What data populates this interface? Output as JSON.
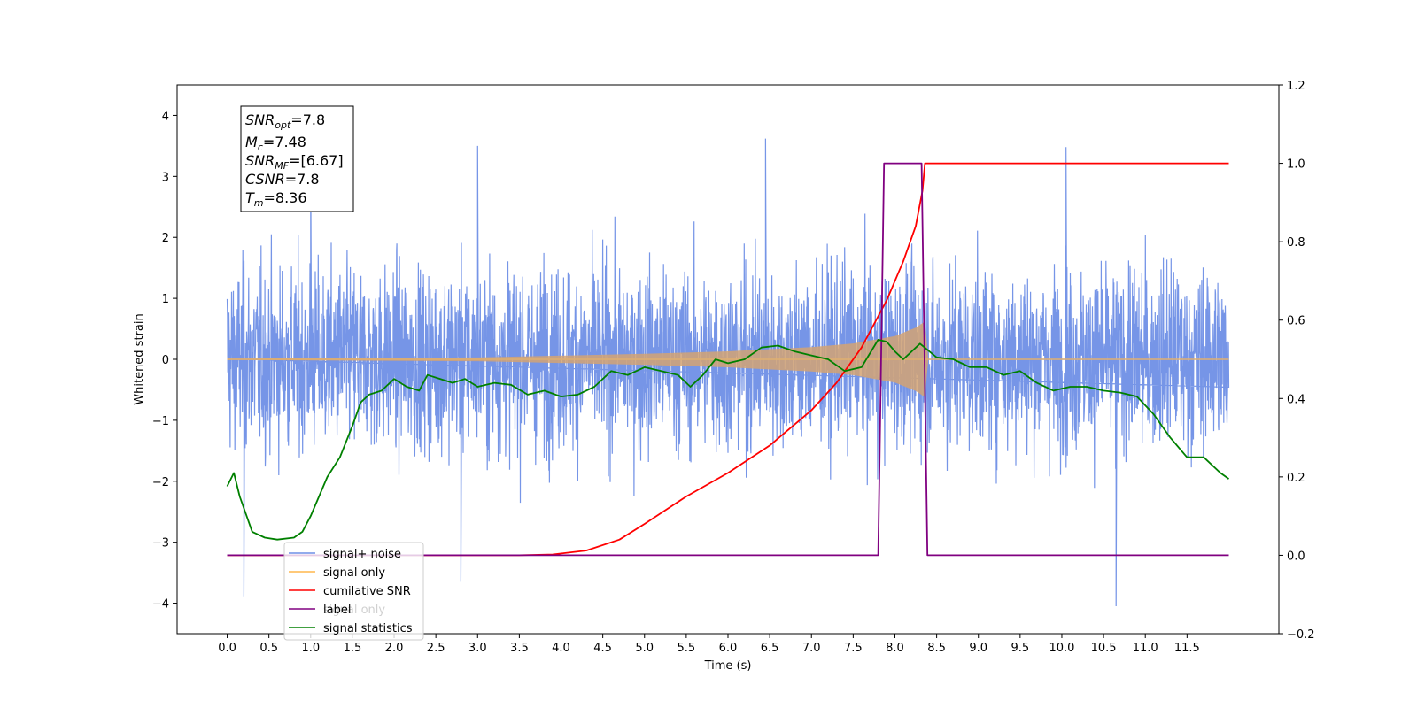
{
  "chart_data": {
    "type": "line",
    "xlabel": "Time (s)",
    "ylabel": "Whitened strain",
    "xlim": [
      -0.6,
      12.6
    ],
    "ylim": [
      -4.5,
      4.5
    ],
    "y2lim": [
      -0.2,
      1.2
    ],
    "x_ticks": [
      "0.0",
      "0.5",
      "1.0",
      "1.5",
      "2.0",
      "2.5",
      "3.0",
      "3.5",
      "4.0",
      "4.5",
      "5.0",
      "5.5",
      "6.0",
      "6.5",
      "7.0",
      "7.5",
      "8.0",
      "8.5",
      "9.0",
      "9.5",
      "10.0",
      "10.5",
      "11.0",
      "11.5"
    ],
    "y_ticks": [
      "4",
      "3",
      "2",
      "1",
      "0",
      "−1",
      "−2",
      "−3",
      "−4"
    ],
    "y2_ticks": [
      "1.2",
      "1.0",
      "0.8",
      "0.6",
      "0.4",
      "0.2",
      "0.0",
      "−0.2"
    ],
    "annotation": {
      "snr_opt": {
        "base": "SNR",
        "sub": "opt",
        "value": "=7.8"
      },
      "mc": {
        "base": "M",
        "sub": "c",
        "value": "=7.48"
      },
      "snr_mf": {
        "base": "SNR",
        "sub": "MF",
        "value": "=[6.67]"
      },
      "csnr": {
        "base": "CSNR",
        "sub": "",
        "value": "=7.8"
      },
      "tm": {
        "base": "T",
        "sub": "m",
        "value": "=8.36"
      }
    },
    "legend": {
      "placement": "lower-left",
      "entries": [
        {
          "label": "signal+ noise",
          "color": "#6f8fe6"
        },
        {
          "label": "signal only",
          "color": "#ffb74d"
        },
        {
          "label": "cumilative SNR",
          "color": "#ff0000"
        },
        {
          "label": "label",
          "color": "#800080"
        },
        {
          "label": "signal only",
          "color": "#d8d8d8"
        },
        {
          "label": "signal statistics",
          "color": "#008000"
        }
      ]
    },
    "series": [
      {
        "name": "signal+ noise",
        "axis": "left",
        "color": "#6f8fe6",
        "x_range": [
          0.0,
          12.0
        ],
        "typical_range": [
          -2.0,
          2.0
        ],
        "extremes": [
          [
            0.2,
            -3.9
          ],
          [
            2.8,
            -3.65
          ],
          [
            6.45,
            3.62
          ],
          [
            10.05,
            3.48
          ],
          [
            10.65,
            -4.05
          ],
          [
            3.0,
            3.5
          ],
          [
            1.0,
            3.2
          ]
        ]
      },
      {
        "name": "signal only",
        "axis": "left",
        "color": "#d4a373",
        "envelope": [
          [
            0.0,
            0.01
          ],
          [
            3.0,
            0.03
          ],
          [
            5.0,
            0.09
          ],
          [
            6.0,
            0.13
          ],
          [
            7.0,
            0.2
          ],
          [
            7.5,
            0.26
          ],
          [
            8.0,
            0.38
          ],
          [
            8.25,
            0.52
          ],
          [
            8.36,
            0.62
          ],
          [
            8.4,
            0.0
          ],
          [
            12.0,
            0.0
          ]
        ]
      },
      {
        "name": "cumilative SNR",
        "axis": "right",
        "color": "#ff0000",
        "x": [
          0.0,
          3.5,
          3.9,
          4.3,
          4.7,
          5.0,
          5.5,
          6.0,
          6.5,
          7.0,
          7.3,
          7.6,
          7.9,
          8.1,
          8.25,
          8.33,
          8.36,
          12.0
        ],
        "y": [
          0.0,
          0.0,
          0.002,
          0.012,
          0.04,
          0.08,
          0.15,
          0.21,
          0.28,
          0.37,
          0.44,
          0.53,
          0.65,
          0.75,
          0.84,
          0.93,
          1.0,
          1.0
        ]
      },
      {
        "name": "label",
        "axis": "right",
        "color": "#800080",
        "x": [
          0.0,
          7.8,
          7.87,
          8.32,
          8.39,
          12.0
        ],
        "y": [
          0.0,
          0.0,
          1.0,
          1.0,
          0.0,
          0.0
        ]
      },
      {
        "name": "signal statistics",
        "axis": "right",
        "color": "#008000",
        "x": [
          0.0,
          0.08,
          0.15,
          0.3,
          0.45,
          0.6,
          0.8,
          0.9,
          1.0,
          1.1,
          1.2,
          1.35,
          1.5,
          1.6,
          1.7,
          1.85,
          2.0,
          2.15,
          2.3,
          2.4,
          2.55,
          2.7,
          2.85,
          3.0,
          3.2,
          3.4,
          3.6,
          3.8,
          4.0,
          4.2,
          4.4,
          4.6,
          4.8,
          5.0,
          5.2,
          5.4,
          5.55,
          5.7,
          5.85,
          6.0,
          6.2,
          6.4,
          6.6,
          6.8,
          7.0,
          7.2,
          7.4,
          7.6,
          7.8,
          7.9,
          8.0,
          8.1,
          8.3,
          8.5,
          8.7,
          8.9,
          9.1,
          9.3,
          9.5,
          9.7,
          9.9,
          10.1,
          10.3,
          10.5,
          10.7,
          10.9,
          11.1,
          11.3,
          11.5,
          11.7,
          11.9,
          12.0
        ],
        "y": [
          0.176,
          0.21,
          0.15,
          0.06,
          0.045,
          0.04,
          0.045,
          0.06,
          0.1,
          0.15,
          0.2,
          0.25,
          0.33,
          0.39,
          0.41,
          0.42,
          0.45,
          0.43,
          0.42,
          0.46,
          0.45,
          0.44,
          0.45,
          0.43,
          0.44,
          0.435,
          0.41,
          0.42,
          0.405,
          0.41,
          0.43,
          0.47,
          0.46,
          0.48,
          0.47,
          0.46,
          0.43,
          0.46,
          0.5,
          0.49,
          0.5,
          0.53,
          0.535,
          0.52,
          0.51,
          0.5,
          0.47,
          0.48,
          0.55,
          0.545,
          0.52,
          0.5,
          0.54,
          0.505,
          0.5,
          0.48,
          0.48,
          0.46,
          0.47,
          0.44,
          0.42,
          0.43,
          0.43,
          0.42,
          0.415,
          0.405,
          0.36,
          0.3,
          0.25,
          0.25,
          0.21,
          0.195
        ]
      }
    ]
  }
}
